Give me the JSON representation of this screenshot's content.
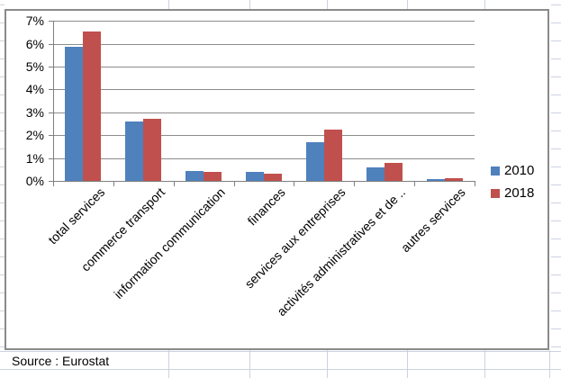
{
  "chart_data": {
    "type": "bar",
    "title": "",
    "xlabel": "",
    "ylabel": "",
    "categories": [
      "total services",
      "commerce transport",
      "information communication",
      "finances",
      "services aux entreprises",
      "activités administratives et de ..",
      "autres services"
    ],
    "series": [
      {
        "name": "2010",
        "color": "#4F81BD",
        "values": [
          5.85,
          2.6,
          0.45,
          0.4,
          1.7,
          0.6,
          0.07
        ]
      },
      {
        "name": "2018",
        "color": "#C0504D",
        "values": [
          6.55,
          2.7,
          0.4,
          0.3,
          2.25,
          0.8,
          0.12
        ]
      }
    ],
    "ylim": [
      0,
      7
    ],
    "ytick_step": 1,
    "yticks": [
      "0%",
      "1%",
      "2%",
      "3%",
      "4%",
      "5%",
      "6%",
      "7%"
    ],
    "grid": true,
    "legend_position": "middle-right"
  },
  "legend": {
    "items": [
      {
        "label": "2010",
        "color": "#4F81BD"
      },
      {
        "label": "2018",
        "color": "#C0504D"
      }
    ]
  },
  "footer": {
    "source_label": "Source : Eurostat"
  },
  "colors": {
    "series_2010": "#4F81BD",
    "series_2018": "#C0504D",
    "gridline": "#8C8C8C",
    "axis": "#7F7F7F",
    "chart_border": "#8A8A8A",
    "sheet_gridline": "#CCD3DF",
    "text": "#000000",
    "background": "#FFFFFF"
  }
}
